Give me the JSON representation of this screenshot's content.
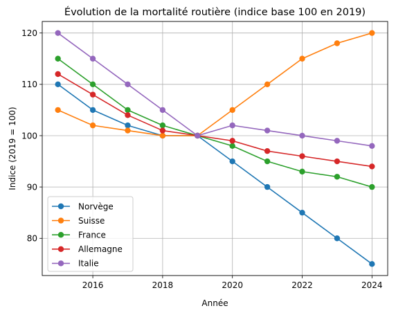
{
  "chart_data": {
    "type": "line",
    "title": "Évolution de la mortalité routière (indice base 100 en 2019)",
    "xlabel": "Année",
    "ylabel": "Indice (2019 = 100)",
    "x": [
      2015,
      2016,
      2017,
      2018,
      2019,
      2020,
      2021,
      2022,
      2023,
      2024
    ],
    "xlim": [
      2014.55,
      2024.45
    ],
    "ylim": [
      72.75,
      122.25
    ],
    "x_ticks": [
      2016,
      2018,
      2020,
      2022,
      2024
    ],
    "y_ticks": [
      80,
      90,
      100,
      110,
      120
    ],
    "grid": true,
    "legend_position": "lower-left",
    "series": [
      {
        "name": "Norvège",
        "color": "#1f77b4",
        "values": [
          110,
          105,
          102,
          100,
          100,
          95,
          90,
          85,
          80,
          75
        ]
      },
      {
        "name": "Suisse",
        "color": "#ff7f0e",
        "values": [
          105,
          102,
          101,
          100,
          100,
          105,
          110,
          115,
          118,
          120
        ]
      },
      {
        "name": "France",
        "color": "#2ca02c",
        "values": [
          115,
          110,
          105,
          102,
          100,
          98,
          95,
          93,
          92,
          90
        ]
      },
      {
        "name": "Allemagne",
        "color": "#d62728",
        "values": [
          112,
          108,
          104,
          101,
          100,
          99,
          97,
          96,
          95,
          94
        ]
      },
      {
        "name": "Italie",
        "color": "#9467bd",
        "values": [
          120,
          115,
          110,
          105,
          100,
          102,
          101,
          100,
          99,
          98
        ]
      }
    ]
  }
}
